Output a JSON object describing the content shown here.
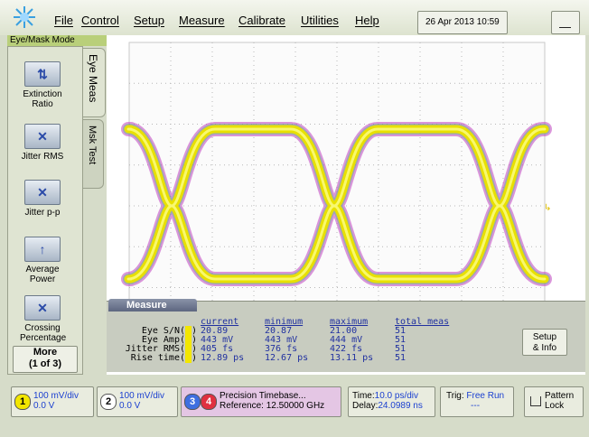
{
  "menu": {
    "items": [
      "File",
      "Control",
      "Setup",
      "Measure",
      "Calibrate",
      "Utilities",
      "Help"
    ],
    "datetime": "26 Apr 2013  10:59"
  },
  "mode": "Eye/Mask Mode",
  "tabs": [
    "Eye Meas",
    "Msk Test"
  ],
  "tools": [
    "Extinction Ratio",
    "Jitter RMS",
    "Jitter p-p",
    "Average Power",
    "Crossing Percentage"
  ],
  "more": {
    "label": "More",
    "page": "(1 of 3)"
  },
  "measure": {
    "title": "Measure",
    "headers": [
      "current",
      "minimum",
      "maximum",
      "total meas"
    ],
    "rows": [
      {
        "name": "Eye S/N(",
        "channel": "1",
        "close": ")",
        "values": [
          "20.89",
          "20.87",
          "21.00",
          "51"
        ]
      },
      {
        "name": "Eye Amp(",
        "channel": "1",
        "close": ")",
        "values": [
          "443 mV",
          "443 mV",
          "444 mV",
          "51"
        ]
      },
      {
        "name": "Jitter RMS(",
        "channel": "1",
        "close": ")",
        "values": [
          "405 fs",
          "376 fs",
          "422 fs",
          "51"
        ]
      },
      {
        "name": "Rise time(",
        "channel": "1",
        "close": ")",
        "values": [
          "12.89 ps",
          "12.67 ps",
          "13.11 ps",
          "51"
        ]
      }
    ],
    "button": [
      "Setup",
      "& Info"
    ]
  },
  "status": {
    "ch1": {
      "num": "1",
      "scale": "100 mV/div",
      "offset": "0.0 V"
    },
    "ch2": {
      "num": "2",
      "scale": "100 mV/div",
      "offset": "0.0 V"
    },
    "timebase": {
      "ch3": "3",
      "ch4": "4",
      "title": "Precision Timebase...",
      "reference": "Reference: 12.50000 GHz"
    },
    "time": {
      "label": "Time:",
      "value": "10.0 ps/div",
      "delay_label": "Delay:",
      "delay": "24.0989 ns"
    },
    "trig": {
      "label": "Trig:",
      "value": "Free Run",
      "sub": "---"
    },
    "pattern": [
      "Pattern",
      "Lock"
    ]
  }
}
